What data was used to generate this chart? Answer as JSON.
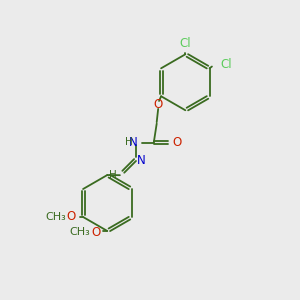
{
  "bg_color": "#ebebeb",
  "bond_color": "#3a6b20",
  "cl_color": "#5ccc5c",
  "o_color": "#cc2200",
  "n_color": "#0000cc",
  "h_color": "#3a6b20",
  "c_color": "#3a6b20",
  "line_width": 1.3,
  "font_size": 8.5,
  "fig_w": 3.0,
  "fig_h": 3.0,
  "dpi": 100,
  "xlim": [
    0,
    10
  ],
  "ylim": [
    0,
    10
  ]
}
